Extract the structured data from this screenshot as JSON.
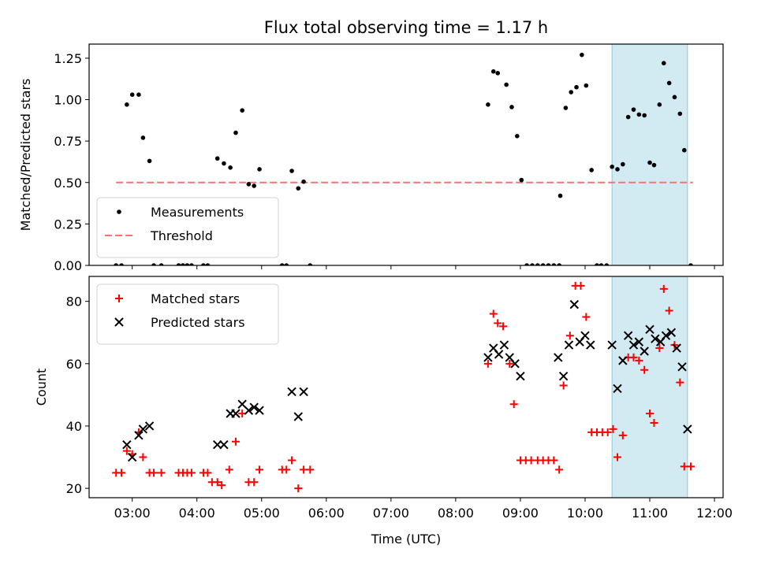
{
  "figure_title": "Flux total observing time = 1.17 h",
  "chart_data": [
    {
      "type": "scatter",
      "panel": "top",
      "ylabel": "Matched/Predicted stars",
      "xlabel": "",
      "xlim": [
        "02:20",
        "12:08"
      ],
      "ylim": [
        0,
        1.335
      ],
      "x_ticks": [
        "03:00",
        "04:00",
        "05:00",
        "06:00",
        "07:00",
        "08:00",
        "09:00",
        "10:00",
        "11:00",
        "12:00"
      ],
      "y_ticks": [
        "0.00",
        "0.25",
        "0.50",
        "0.75",
        "1.00",
        "1.25"
      ],
      "shaded_span": [
        "10:25",
        "11:35"
      ],
      "threshold": {
        "name": "Threshold",
        "y": 0.5,
        "x_from": "02:45",
        "x_to": "11:40",
        "color": "#ff7070"
      },
      "legend_position": "lower-left",
      "series": [
        {
          "name": "Measurements",
          "color": "#000000",
          "points": [
            [
              "02:45",
              0
            ],
            [
              "02:50",
              0
            ],
            [
              "02:55",
              0.97
            ],
            [
              "03:00",
              1.03
            ],
            [
              "03:06",
              1.03
            ],
            [
              "03:10",
              0.77
            ],
            [
              "03:16",
              0.63
            ],
            [
              "03:20",
              0
            ],
            [
              "03:27",
              0
            ],
            [
              "03:43",
              0
            ],
            [
              "03:47",
              0
            ],
            [
              "03:51",
              0
            ],
            [
              "03:55",
              0
            ],
            [
              "04:06",
              0
            ],
            [
              "04:10",
              0
            ],
            [
              "04:19",
              0.645
            ],
            [
              "04:25",
              0.615
            ],
            [
              "04:31",
              0.59
            ],
            [
              "04:36",
              0.8
            ],
            [
              "04:42",
              0.935
            ],
            [
              "04:48",
              0.49
            ],
            [
              "04:53",
              0.48
            ],
            [
              "04:58",
              0.58
            ],
            [
              "05:19",
              0
            ],
            [
              "05:23",
              0
            ],
            [
              "05:28",
              0.57
            ],
            [
              "05:34",
              0.465
            ],
            [
              "05:39",
              0.505
            ],
            [
              "05:45",
              0
            ],
            [
              "08:30",
              0.97
            ],
            [
              "08:35",
              1.17
            ],
            [
              "08:39",
              1.16
            ],
            [
              "08:47",
              1.09
            ],
            [
              "08:52",
              0.955
            ],
            [
              "08:57",
              0.78
            ],
            [
              "09:01",
              0.515
            ],
            [
              "09:06",
              0
            ],
            [
              "09:11",
              0
            ],
            [
              "09:16",
              0
            ],
            [
              "09:21",
              0
            ],
            [
              "09:26",
              0
            ],
            [
              "09:31",
              0
            ],
            [
              "09:36",
              0
            ],
            [
              "09:37",
              0.42
            ],
            [
              "09:42",
              0.95
            ],
            [
              "09:47",
              1.045
            ],
            [
              "09:52",
              1.075
            ],
            [
              "09:57",
              1.27
            ],
            [
              "10:01",
              1.085
            ],
            [
              "10:06",
              0.575
            ],
            [
              "10:11",
              0
            ],
            [
              "10:15",
              0
            ],
            [
              "10:20",
              0
            ],
            [
              "10:25",
              0.595
            ],
            [
              "10:30",
              0.58
            ],
            [
              "10:35",
              0.61
            ],
            [
              "10:40",
              0.895
            ],
            [
              "10:45",
              0.94
            ],
            [
              "10:50",
              0.91
            ],
            [
              "10:55",
              0.905
            ],
            [
              "11:00",
              0.62
            ],
            [
              "11:04",
              0.605
            ],
            [
              "11:09",
              0.97
            ],
            [
              "11:13",
              1.22
            ],
            [
              "11:18",
              1.1
            ],
            [
              "11:23",
              1.015
            ],
            [
              "11:28",
              0.915
            ],
            [
              "11:32",
              0.695
            ],
            [
              "11:38",
              0
            ]
          ]
        }
      ]
    },
    {
      "type": "scatter",
      "panel": "bottom",
      "ylabel": "Count",
      "xlabel": "Time (UTC)",
      "xlim": [
        "02:20",
        "12:08"
      ],
      "ylim": [
        17,
        88
      ],
      "x_ticks": [
        "03:00",
        "04:00",
        "05:00",
        "06:00",
        "07:00",
        "08:00",
        "09:00",
        "10:00",
        "11:00",
        "12:00"
      ],
      "y_ticks": [
        "20",
        "40",
        "60",
        "80"
      ],
      "shaded_span": [
        "10:25",
        "11:35"
      ],
      "legend_position": "upper-left",
      "series": [
        {
          "name": "Matched stars",
          "marker": "plus",
          "color": "#ff0000",
          "points": [
            [
              "02:45",
              25
            ],
            [
              "02:50",
              25
            ],
            [
              "02:55",
              32
            ],
            [
              "03:00",
              31
            ],
            [
              "03:06",
              38
            ],
            [
              "03:10",
              30
            ],
            [
              "03:16",
              25
            ],
            [
              "03:20",
              25
            ],
            [
              "03:27",
              25
            ],
            [
              "03:43",
              25
            ],
            [
              "03:47",
              25
            ],
            [
              "03:51",
              25
            ],
            [
              "03:55",
              25
            ],
            [
              "04:06",
              25
            ],
            [
              "04:10",
              25
            ],
            [
              "04:14",
              22
            ],
            [
              "04:19",
              22
            ],
            [
              "04:23",
              21
            ],
            [
              "04:30",
              26
            ],
            [
              "04:36",
              35
            ],
            [
              "04:42",
              44
            ],
            [
              "04:48",
              22
            ],
            [
              "04:53",
              22
            ],
            [
              "04:58",
              26
            ],
            [
              "05:19",
              26
            ],
            [
              "05:23",
              26
            ],
            [
              "05:28",
              29
            ],
            [
              "05:34",
              20
            ],
            [
              "05:39",
              26
            ],
            [
              "05:45",
              26
            ],
            [
              "08:30",
              60
            ],
            [
              "08:35",
              76
            ],
            [
              "08:39",
              73
            ],
            [
              "08:44",
              72
            ],
            [
              "08:50",
              60
            ],
            [
              "08:54",
              47
            ],
            [
              "09:00",
              29
            ],
            [
              "09:05",
              29
            ],
            [
              "09:10",
              29
            ],
            [
              "09:16",
              29
            ],
            [
              "09:21",
              29
            ],
            [
              "09:26",
              29
            ],
            [
              "09:31",
              29
            ],
            [
              "09:36",
              26
            ],
            [
              "09:40",
              53
            ],
            [
              "09:46",
              69
            ],
            [
              "09:51",
              85
            ],
            [
              "09:56",
              85
            ],
            [
              "10:01",
              75
            ],
            [
              "10:06",
              38
            ],
            [
              "10:11",
              38
            ],
            [
              "10:16",
              38
            ],
            [
              "10:21",
              38
            ],
            [
              "10:26",
              39
            ],
            [
              "10:30",
              30
            ],
            [
              "10:35",
              37
            ],
            [
              "10:40",
              62
            ],
            [
              "10:45",
              62
            ],
            [
              "10:50",
              61
            ],
            [
              "10:55",
              58
            ],
            [
              "11:00",
              44
            ],
            [
              "11:04",
              41
            ],
            [
              "11:09",
              65
            ],
            [
              "11:13",
              84
            ],
            [
              "11:18",
              77
            ],
            [
              "11:23",
              66
            ],
            [
              "11:28",
              54
            ],
            [
              "11:32",
              27
            ],
            [
              "11:38",
              27
            ]
          ]
        },
        {
          "name": "Predicted stars",
          "marker": "x",
          "color": "#000000",
          "points": [
            [
              "02:55",
              34
            ],
            [
              "03:00",
              30
            ],
            [
              "03:06",
              37
            ],
            [
              "03:10",
              39
            ],
            [
              "03:16",
              40
            ],
            [
              "04:19",
              34
            ],
            [
              "04:25",
              34
            ],
            [
              "04:31",
              44
            ],
            [
              "04:36",
              44
            ],
            [
              "04:42",
              47
            ],
            [
              "04:48",
              45
            ],
            [
              "04:53",
              46
            ],
            [
              "04:58",
              45
            ],
            [
              "05:28",
              51
            ],
            [
              "05:34",
              43
            ],
            [
              "05:39",
              51
            ],
            [
              "08:30",
              62
            ],
            [
              "08:35",
              65
            ],
            [
              "08:40",
              63
            ],
            [
              "08:45",
              66
            ],
            [
              "08:50",
              62
            ],
            [
              "08:55",
              60
            ],
            [
              "09:00",
              56
            ],
            [
              "09:35",
              62
            ],
            [
              "09:40",
              56
            ],
            [
              "09:45",
              66
            ],
            [
              "09:50",
              79
            ],
            [
              "09:55",
              67
            ],
            [
              "10:00",
              69
            ],
            [
              "10:05",
              66
            ],
            [
              "10:25",
              66
            ],
            [
              "10:30",
              52
            ],
            [
              "10:35",
              61
            ],
            [
              "10:40",
              69
            ],
            [
              "10:45",
              66
            ],
            [
              "10:50",
              67
            ],
            [
              "10:55",
              64
            ],
            [
              "11:00",
              71
            ],
            [
              "11:05",
              68
            ],
            [
              "11:10",
              67
            ],
            [
              "11:15",
              69
            ],
            [
              "11:20",
              70
            ],
            [
              "11:25",
              65
            ],
            [
              "11:30",
              59
            ],
            [
              "11:35",
              39
            ]
          ]
        }
      ]
    }
  ]
}
